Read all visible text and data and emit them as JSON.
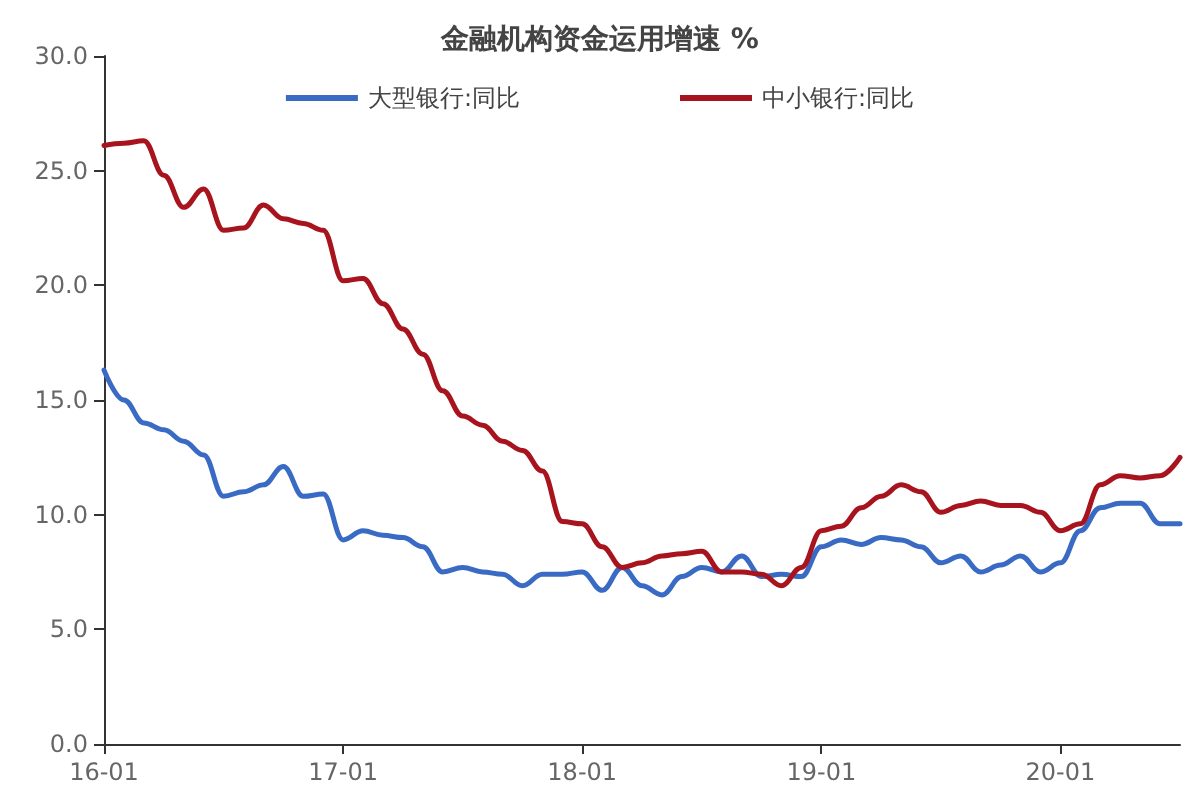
{
  "chart_data": {
    "type": "line",
    "title": "金融机构资金运用增速 %",
    "categories": [
      "16-01",
      null,
      null,
      null,
      null,
      null,
      null,
      null,
      null,
      null,
      null,
      null,
      "17-01",
      null,
      null,
      null,
      null,
      null,
      null,
      null,
      null,
      null,
      null,
      null,
      "18-01",
      null,
      null,
      null,
      null,
      null,
      null,
      null,
      null,
      null,
      null,
      null,
      "19-01",
      null,
      null,
      null,
      null,
      null,
      null,
      null,
      null,
      null,
      null,
      null,
      "20-01",
      null,
      null,
      null,
      null,
      null,
      null
    ],
    "series": [
      {
        "name": "大型银行:同比",
        "color": "#3a6bc4",
        "values": [
          16.3,
          15.0,
          14.0,
          13.7,
          13.2,
          12.6,
          10.8,
          11.0,
          11.3,
          12.1,
          10.8,
          10.9,
          8.9,
          9.3,
          9.1,
          9.0,
          8.6,
          7.5,
          7.7,
          7.5,
          7.4,
          6.9,
          7.4,
          7.4,
          7.5,
          6.7,
          7.7,
          6.9,
          6.5,
          7.3,
          7.7,
          7.5,
          8.2,
          7.3,
          7.4,
          7.3,
          8.6,
          8.9,
          8.7,
          9.0,
          8.9,
          8.6,
          7.9,
          8.2,
          7.5,
          7.8,
          8.2,
          7.5,
          7.9,
          9.3,
          10.3,
          10.5,
          10.5,
          9.6,
          9.6
        ]
      },
      {
        "name": "中小银行:同比",
        "color": "#a8141e",
        "values": [
          26.1,
          26.2,
          26.3,
          24.8,
          23.4,
          24.2,
          22.4,
          22.5,
          23.5,
          22.9,
          22.7,
          22.4,
          20.2,
          20.3,
          19.2,
          18.1,
          17.0,
          15.4,
          14.3,
          13.9,
          13.2,
          12.8,
          11.9,
          9.7,
          9.6,
          8.6,
          7.7,
          7.9,
          8.2,
          8.3,
          8.4,
          7.5,
          7.5,
          7.4,
          6.9,
          7.7,
          9.3,
          9.5,
          10.3,
          10.8,
          11.3,
          11.0,
          10.1,
          10.4,
          10.6,
          10.4,
          10.4,
          10.1,
          9.3,
          9.6,
          11.3,
          11.7,
          11.6,
          11.7,
          12.5
        ]
      }
    ],
    "ylim": [
      0,
      30
    ],
    "yticks": [
      {
        "value": 0,
        "label": "0.0"
      },
      {
        "value": 5,
        "label": "5.0"
      },
      {
        "value": 10,
        "label": "10.0"
      },
      {
        "value": 15,
        "label": "15.0"
      },
      {
        "value": 20,
        "label": "20.0"
      },
      {
        "value": 25,
        "label": "25.0"
      },
      {
        "value": 30,
        "label": "30.0"
      }
    ],
    "legend": "top",
    "grid": false,
    "marker": "none",
    "line_style": "solid"
  }
}
